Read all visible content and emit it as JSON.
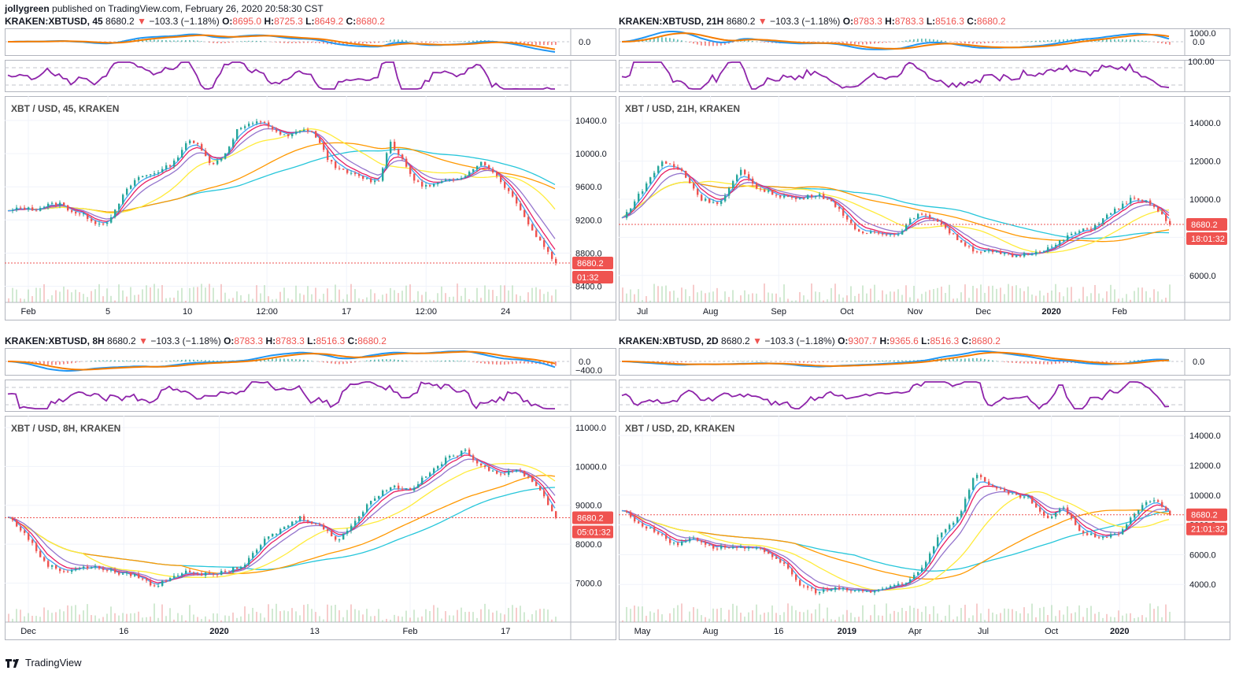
{
  "publisher": {
    "user": "jollygreen",
    "text": "published on TradingView.com, February 26, 2020 20:58:30 CST"
  },
  "footer": {
    "brand": "TradingView"
  },
  "colors": {
    "ema_fast": "#2196f3",
    "ema_slow": "#f57c00",
    "rsi": "#8e24aa",
    "ma_yellow": "#ffeb3b",
    "ma_orange": "#ff9800",
    "ma_cyan": "#26c6da",
    "candle_up": "#26a69a",
    "candle_down": "#ef5350",
    "price_line": "#ef5350"
  },
  "panels": [
    {
      "id": "p45",
      "header": {
        "symbol": "KRAKEN:XBTUSD, 45",
        "last": "8680.2",
        "change": "−103.3 (−1.18%)",
        "o": "8695.0",
        "h": "8725.3",
        "l": "8649.2",
        "c": "8680.2"
      },
      "main_label": "XBT / USD, 45, KRAKEN",
      "macd_label": "0.0",
      "rsi_labels": [],
      "price_tag": "8680.2",
      "countdown": "01:32",
      "chart_data": {
        "type": "line",
        "x_ticks": [
          "Feb",
          "5",
          "10",
          "12:00",
          "17",
          "12:00",
          "24"
        ],
        "y_ticks": [
          "8400.0",
          "8800.0",
          "9200.0",
          "9600.0",
          "10000.0",
          "10400.0"
        ],
        "ylim": [
          8300,
          10600
        ],
        "series": [
          {
            "values": [
              9300,
              9350,
              9320,
              9380,
              9400,
              9300,
              9250,
              9150,
              9200,
              9500,
              9700,
              9750,
              9800,
              9900,
              10150,
              10100,
              9850,
              10000,
              10300,
              10350,
              10400,
              10250,
              10200,
              10300,
              10250,
              9950,
              9800,
              9750,
              9700,
              9650,
              10150,
              9900,
              9650,
              9600,
              9650,
              9700,
              9750,
              9900,
              9800,
              9600,
              9400,
              9100,
              8900,
              8680
            ]
          }
        ]
      }
    },
    {
      "id": "p21h",
      "header": {
        "symbol": "KRAKEN:XBTUSD, 21H",
        "last": "8680.2",
        "change": "−103.3 (−1.18%)",
        "o": "8783.3",
        "h": "8783.3",
        "l": "8516.3",
        "c": "8680.2"
      },
      "main_label": "XBT / USD, 21H, KRAKEN",
      "macd_label": "0.0",
      "rsi_labels": [
        "1000.0",
        "100.00"
      ],
      "price_tag": "8680.2",
      "countdown": "18:01:32",
      "chart_data": {
        "type": "line",
        "x_ticks": [
          "Jul",
          "Aug",
          "Sep",
          "Oct",
          "Nov",
          "Dec",
          "2020",
          "Feb"
        ],
        "y_ticks": [
          "6000.0",
          "8000.0",
          "10000.0",
          "12000.0",
          "14000.0"
        ],
        "ylim": [
          5000,
          15000
        ],
        "series": [
          {
            "values": [
              9000,
              10500,
              12000,
              11500,
              10000,
              9800,
              11500,
              10500,
              10200,
              10000,
              10300,
              9600,
              8200,
              8300,
              8100,
              9200,
              9000,
              8000,
              7300,
              7200,
              7000,
              7200,
              7500,
              8200,
              8500,
              9300,
              10000,
              9800,
              8680
            ]
          }
        ]
      }
    },
    {
      "id": "p8h",
      "header": {
        "symbol": "KRAKEN:XBTUSD, 8H",
        "last": "8680.2",
        "change": "−103.3 (−1.18%)",
        "o": "8783.3",
        "h": "8783.3",
        "l": "8516.3",
        "c": "8680.2"
      },
      "main_label": "XBT / USD, 8H, KRAKEN",
      "macd_label": "0.0",
      "macd_label2": "−400.0",
      "rsi_labels": [],
      "price_tag": "8680.2",
      "countdown": "05:01:32",
      "chart_data": {
        "type": "line",
        "x_ticks": [
          "Dec",
          "16",
          "2020",
          "13",
          "Feb",
          "17"
        ],
        "y_ticks": [
          "7000.0",
          "8000.0",
          "9000.0",
          "10000.0",
          "11000.0"
        ],
        "ylim": [
          6200,
          11100
        ],
        "series": [
          {
            "values": [
              8700,
              8200,
              7500,
              7300,
              7400,
              7400,
              7250,
              7200,
              6900,
              7200,
              7300,
              7200,
              7300,
              7500,
              8100,
              8400,
              8700,
              8500,
              8100,
              8600,
              9200,
              9500,
              9400,
              9800,
              10200,
              10400,
              10000,
              9800,
              9900,
              9500,
              8680
            ]
          }
        ]
      }
    },
    {
      "id": "p2d",
      "header": {
        "symbol": "KRAKEN:XBTUSD, 2D",
        "last": "8680.2",
        "change": "−103.3 (−1.18%)",
        "o": "9307.7",
        "h": "9365.6",
        "l": "8516.3",
        "c": "8680.2"
      },
      "main_label": "XBT / USD, 2D, KRAKEN",
      "macd_label": "0.0",
      "rsi_labels": [],
      "price_tag": "8680.2",
      "countdown": "21:01:32",
      "chart_data": {
        "type": "line",
        "x_ticks": [
          "May",
          "Aug",
          "16",
          "2019",
          "Apr",
          "Jul",
          "Oct",
          "2020"
        ],
        "y_ticks": [
          "4000.0",
          "6000.0",
          "8000.0",
          "10000.0",
          "12000.0",
          "14000.0"
        ],
        "ylim": [
          2000,
          14800
        ],
        "series": [
          {
            "values": [
              9000,
              8000,
              7500,
              6600,
              7200,
              6500,
              6500,
              6400,
              6300,
              5500,
              4000,
              3500,
              3700,
              3600,
              3500,
              3800,
              4000,
              5200,
              7500,
              8500,
              11500,
              10500,
              10000,
              9800,
              8300,
              9200,
              7400,
              7200,
              7300,
              8800,
              9800,
              8680
            ]
          }
        ]
      }
    }
  ]
}
